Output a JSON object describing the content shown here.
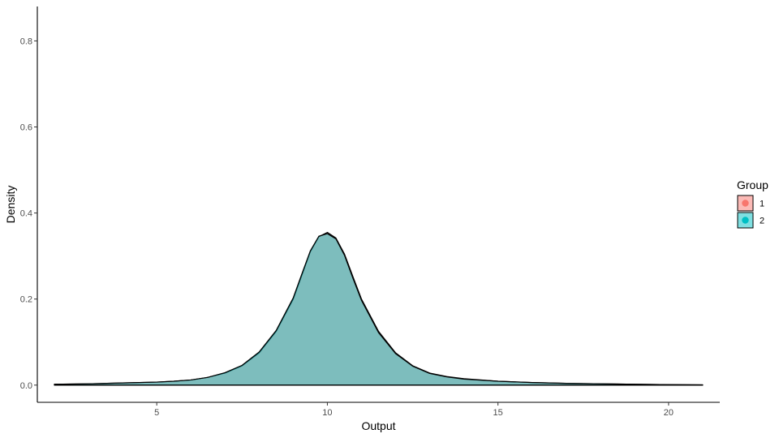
{
  "chart_data": {
    "type": "area",
    "xlabel": "Output",
    "ylabel": "Density",
    "xlim": [
      1.5,
      21.5
    ],
    "ylim": [
      -0.04,
      0.88
    ],
    "x_ticks": [
      5,
      10,
      15,
      20
    ],
    "x_tick_labels": [
      "5",
      "10",
      "15",
      "20"
    ],
    "y_ticks": [
      0.0,
      0.2,
      0.4,
      0.6,
      0.8
    ],
    "y_tick_labels": [
      "0.0",
      "0.2",
      "0.4",
      "0.6",
      "0.8"
    ],
    "grid": false,
    "legend": {
      "title": "Group",
      "position": "right",
      "entries": [
        {
          "label": "1",
          "fill": "#F8766D",
          "point": "#F8766D"
        },
        {
          "label": "2",
          "fill": "#00BFC4",
          "point": "#00BFC4"
        }
      ]
    },
    "series": [
      {
        "name": "1",
        "color": "#F8766D",
        "x": [
          2,
          3,
          4,
          5,
          5.5,
          6,
          6.5,
          7,
          7.5,
          8,
          8.5,
          9,
          9.25,
          9.5,
          9.75,
          10,
          10.25,
          10.5,
          10.75,
          11,
          11.5,
          12,
          12.5,
          13,
          13.5,
          14,
          15,
          16,
          17,
          18,
          19,
          20,
          21
        ],
        "y": [
          0.002,
          0.003,
          0.005,
          0.007,
          0.009,
          0.012,
          0.018,
          0.028,
          0.045,
          0.075,
          0.125,
          0.2,
          0.255,
          0.31,
          0.345,
          0.355,
          0.342,
          0.305,
          0.252,
          0.2,
          0.125,
          0.075,
          0.045,
          0.028,
          0.02,
          0.015,
          0.009,
          0.006,
          0.004,
          0.003,
          0.002,
          0.001,
          0.0005
        ]
      },
      {
        "name": "2",
        "color": "#00BFC4",
        "x": [
          2,
          3,
          4,
          5,
          5.5,
          6,
          6.5,
          7,
          7.5,
          8,
          8.5,
          9,
          9.25,
          9.5,
          9.75,
          10,
          10.25,
          10.5,
          10.75,
          11,
          11.5,
          12,
          12.5,
          13,
          13.5,
          14,
          15,
          16,
          17,
          18,
          19,
          20,
          21
        ],
        "y": [
          0.002,
          0.003,
          0.005,
          0.007,
          0.009,
          0.012,
          0.018,
          0.029,
          0.046,
          0.077,
          0.127,
          0.203,
          0.258,
          0.312,
          0.346,
          0.352,
          0.34,
          0.302,
          0.248,
          0.197,
          0.122,
          0.073,
          0.044,
          0.027,
          0.019,
          0.014,
          0.009,
          0.006,
          0.004,
          0.003,
          0.002,
          0.001,
          0.0005
        ]
      }
    ]
  }
}
